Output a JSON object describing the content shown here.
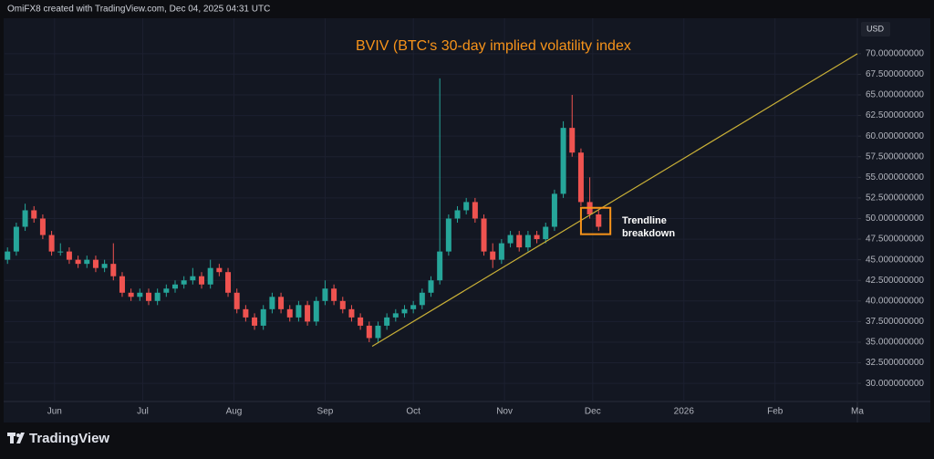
{
  "header": {
    "credit": "OmiFX8 created with TradingView.com, Dec 04, 2025 04:31 UTC"
  },
  "footer": {
    "brand": "TradingView"
  },
  "chart_data": {
    "type": "candlestick",
    "title": "BVIV (BTC's 30-day implied volatility index",
    "annotation": "Trendline breakdown",
    "y_axis_label": "USD",
    "up_color": "#26a69a",
    "down_color": "#ef5350",
    "trendline_color": "#c9b037",
    "highlight_color": "#f7931a",
    "title_color": "#f7931a",
    "grid": true,
    "x": [
      "2025-05-16",
      "2025-05-19",
      "2025-05-22",
      "2025-05-25",
      "2025-05-28",
      "2025-05-31",
      "2025-06-03",
      "2025-06-06",
      "2025-06-09",
      "2025-06-12",
      "2025-06-15",
      "2025-06-18",
      "2025-06-21",
      "2025-06-24",
      "2025-06-27",
      "2025-06-30",
      "2025-07-03",
      "2025-07-06",
      "2025-07-09",
      "2025-07-12",
      "2025-07-15",
      "2025-07-18",
      "2025-07-21",
      "2025-07-24",
      "2025-07-27",
      "2025-07-30",
      "2025-08-02",
      "2025-08-05",
      "2025-08-08",
      "2025-08-11",
      "2025-08-14",
      "2025-08-17",
      "2025-08-20",
      "2025-08-23",
      "2025-08-26",
      "2025-08-29",
      "2025-09-01",
      "2025-09-04",
      "2025-09-07",
      "2025-09-10",
      "2025-09-13",
      "2025-09-16",
      "2025-09-19",
      "2025-09-22",
      "2025-09-25",
      "2025-09-28",
      "2025-10-01",
      "2025-10-04",
      "2025-10-07",
      "2025-10-10",
      "2025-10-13",
      "2025-10-16",
      "2025-10-19",
      "2025-10-22",
      "2025-10-25",
      "2025-10-28",
      "2025-10-31",
      "2025-11-03",
      "2025-11-06",
      "2025-11-09",
      "2025-11-12",
      "2025-11-15",
      "2025-11-18",
      "2025-11-21",
      "2025-11-24",
      "2025-11-27",
      "2025-11-30",
      "2025-12-03"
    ],
    "open": [
      45,
      46,
      49,
      51,
      50,
      48,
      46,
      46,
      45,
      44.5,
      45,
      44,
      44.5,
      43,
      41,
      40.5,
      41,
      40,
      41,
      41.5,
      42,
      42.5,
      43,
      42,
      44,
      43.5,
      41,
      39,
      38,
      37,
      39,
      40.5,
      39,
      38,
      39.5,
      37.5,
      40,
      41.5,
      40,
      39,
      38,
      37,
      35.5,
      37,
      38,
      38.5,
      39,
      39.5,
      41,
      42.5,
      46,
      50,
      51,
      52,
      50,
      46,
      45,
      47,
      48,
      46.5,
      48,
      47.5,
      49,
      53,
      61,
      58,
      52,
      50.5
    ],
    "high": [
      46.5,
      49.5,
      51.8,
      51.5,
      50.5,
      48.5,
      47,
      46.5,
      45.5,
      45.5,
      45.5,
      45,
      47,
      43.5,
      41.5,
      41.5,
      41.5,
      41.5,
      42,
      42.5,
      43,
      44,
      43.5,
      45,
      44.5,
      44,
      41.5,
      39.5,
      38.5,
      39.5,
      41,
      41,
      39.5,
      40,
      40,
      40.5,
      42.5,
      42,
      40.5,
      39.5,
      38.5,
      37.5,
      37.5,
      38.5,
      39,
      39.5,
      40,
      41.5,
      43,
      67,
      50.5,
      51.5,
      52.5,
      52.5,
      50.5,
      47,
      47.5,
      48.5,
      48.5,
      48.5,
      48.5,
      49.5,
      53.5,
      61.8,
      65,
      58.5,
      55,
      51
    ],
    "low": [
      44.5,
      45.5,
      48.5,
      49.5,
      47.5,
      45.5,
      45.5,
      44.5,
      44,
      44,
      43.5,
      43.5,
      42.5,
      40.5,
      40,
      40,
      39.5,
      39.5,
      40.5,
      41,
      41.5,
      42,
      41.5,
      41.5,
      43,
      40.5,
      38.5,
      37.5,
      36.5,
      36.5,
      38.5,
      38.5,
      37.5,
      37.5,
      37,
      37,
      39.5,
      39.5,
      38.5,
      37.5,
      36.5,
      35,
      35,
      36.5,
      37.5,
      38,
      38.5,
      39,
      40.5,
      42,
      45.5,
      49.5,
      50.5,
      49.5,
      45.5,
      44,
      44.5,
      46.5,
      46,
      46,
      47,
      47,
      48.5,
      52.5,
      57.5,
      51.5,
      50,
      48.5
    ],
    "close": [
      46,
      49,
      51,
      50,
      48,
      46,
      46,
      45,
      44.5,
      45,
      44,
      44.5,
      43,
      41,
      40.5,
      41,
      40,
      41,
      41.5,
      42,
      42.5,
      43,
      42,
      44,
      43.5,
      41,
      39,
      38,
      37,
      39,
      40.5,
      39,
      38,
      39.5,
      37.5,
      40,
      41.5,
      40,
      39,
      38,
      37,
      35.5,
      37,
      38,
      38.5,
      39,
      39.5,
      41,
      42.5,
      46,
      50,
      51,
      52,
      50,
      46,
      45,
      47,
      48,
      46.5,
      48,
      47.5,
      49,
      53,
      61,
      58,
      52,
      50.5,
      49
    ],
    "trendline": {
      "x": [
        "2025-09-17",
        "2026-03-01"
      ],
      "values": [
        34.5,
        70
      ]
    },
    "highlight": {
      "x": [
        "2025-11-27",
        "2025-12-07"
      ],
      "values": [
        48.1,
        51.3
      ]
    },
    "xlim": [
      "2025-05-15",
      "2026-03-01"
    ],
    "xticks": [
      {
        "value": "2025-06-01",
        "label": "Jun"
      },
      {
        "value": "2025-07-01",
        "label": "Jul"
      },
      {
        "value": "2025-08-01",
        "label": "Aug"
      },
      {
        "value": "2025-09-01",
        "label": "Sep"
      },
      {
        "value": "2025-10-01",
        "label": "Oct"
      },
      {
        "value": "2025-11-01",
        "label": "Nov"
      },
      {
        "value": "2025-12-01",
        "label": "Dec"
      },
      {
        "value": "2026-01-01",
        "label": "2026"
      },
      {
        "value": "2026-02-01",
        "label": "Feb"
      },
      {
        "value": "2026-03-01",
        "label": "Ma"
      }
    ],
    "ylim": [
      27.8,
      74.3
    ],
    "yticks": [
      {
        "value": 30,
        "label": "30.000000000"
      },
      {
        "value": 32.5,
        "label": "32.500000000"
      },
      {
        "value": 35,
        "label": "35.000000000"
      },
      {
        "value": 37.5,
        "label": "37.500000000"
      },
      {
        "value": 40,
        "label": "40.000000000"
      },
      {
        "value": 42.5,
        "label": "42.500000000"
      },
      {
        "value": 45,
        "label": "45.000000000"
      },
      {
        "value": 47.5,
        "label": "47.500000000"
      },
      {
        "value": 50,
        "label": "50.000000000"
      },
      {
        "value": 52.5,
        "label": "52.500000000"
      },
      {
        "value": 55,
        "label": "55.000000000"
      },
      {
        "value": 57.5,
        "label": "57.500000000"
      },
      {
        "value": 60,
        "label": "60.000000000"
      },
      {
        "value": 62.5,
        "label": "62.500000000"
      },
      {
        "value": 65,
        "label": "65.000000000"
      },
      {
        "value": 67.5,
        "label": "67.500000000"
      },
      {
        "value": 70,
        "label": "70.000000000"
      }
    ]
  }
}
